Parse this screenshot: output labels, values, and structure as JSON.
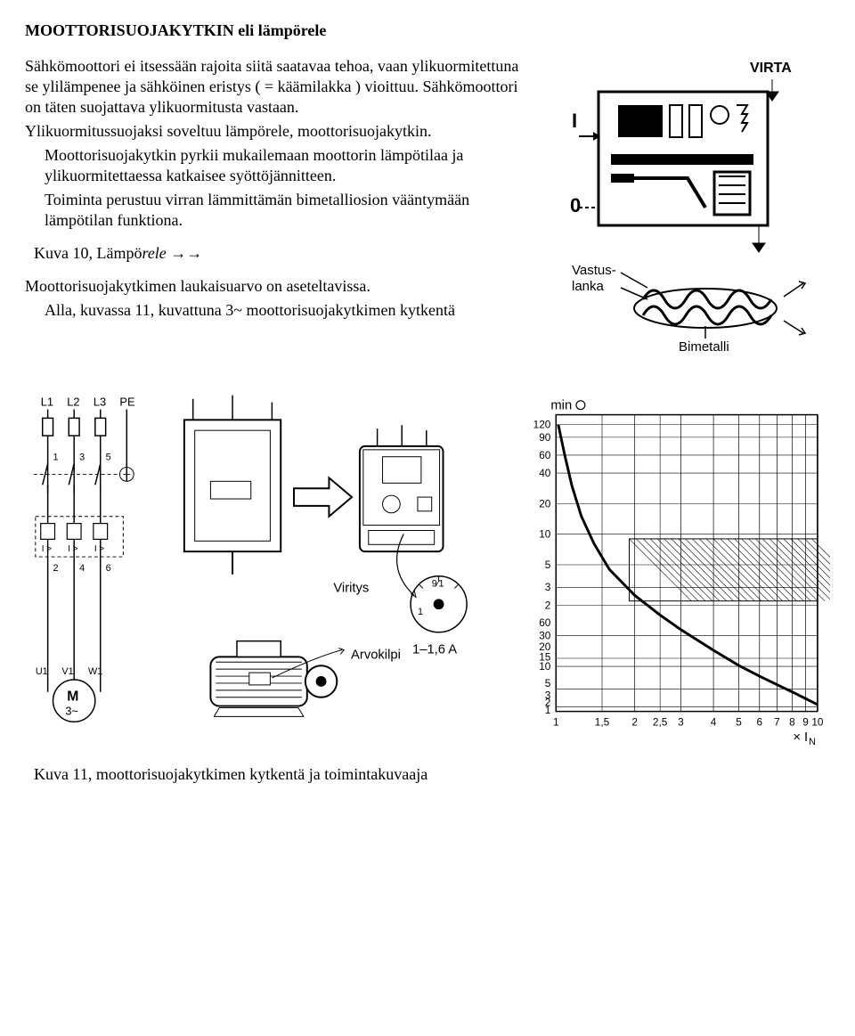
{
  "title": "MOOTTORISUOJAKYTKIN eli lämpörele",
  "intro": "Sähkömoottori ei itsessään rajoita siitä saatavaa tehoa, vaan ylikuormitettuna se ylilämpenee ja sähköinen eristys ( = käämilakka ) vioittuu. Sähkömoottori on täten suojattava ylikuormitusta vastaan.",
  "p1": "Ylikuormitussuojaksi soveltuu lämpörele, moottorisuojakytkin.",
  "p2a": "Moottorisuojakytkin pyrkii mukailemaan moottorin lämpötilaa ja ylikuormitettaessa katkaisee syöttöjännitteen.",
  "p2b": "Toiminta perustuu virran lämmittämän bimetalliosion vääntymään lämpötilan funktiona.",
  "cap10_a": "Kuva 10, Lämpö",
  "cap10_b": "rele →→",
  "p3": "Moottorisuojakytkimen laukaisuarvo on aseteltavissa.",
  "p4": "Alla, kuvassa 11, kuvattuna 3~ moottorisuojakytkimen kytkentä",
  "cap11": "Kuva 11, moottorisuojakytkimen kytkentä ja toimintakuvaaja",
  "fig10": {
    "label_virta": "VIRTA",
    "label_I": "I",
    "label_0": "0",
    "label_vastus1": "Vastus-",
    "label_vastus2": "lanka",
    "label_bimetalli": "Bimetalli"
  },
  "fig11_left": {
    "L1": "L1",
    "L2": "L2",
    "L3": "L3",
    "PE": "PE",
    "t1": "1",
    "t3": "3",
    "t5": "5",
    "b2": "2",
    "b4": "4",
    "b6": "6",
    "igt": "I >",
    "u1": "U1",
    "v1": "V1",
    "w1": "W1",
    "motor": "M",
    "motor_sub": "3~"
  },
  "fig11_mid": {
    "label_viritys": "Viritys",
    "label_range": "1–1,6 A",
    "label_arvokilpi": "Arvokilpi",
    "dial_top": "9⁄1",
    "dial_mid": "1"
  },
  "chart": {
    "title": "minO",
    "y_upper_ticks": [
      "120",
      "90",
      "60",
      "40",
      "20",
      "10",
      "5",
      "3",
      "2",
      "60",
      "30",
      "20",
      "15",
      "10",
      "5",
      "3",
      "2",
      "1"
    ],
    "x_ticks": [
      "1",
      "1,5",
      "2",
      "2,5",
      "3",
      "4",
      "5",
      "6",
      "7",
      "8",
      "9",
      "10"
    ],
    "x_label": "× I",
    "x_label_sub": "N",
    "grid_color": "#000000",
    "bg_color": "#ffffff",
    "font_size": 12,
    "line_width": 2,
    "origin_y_at_break": true,
    "curve_points": [
      {
        "x": 1.02,
        "y": 120
      },
      {
        "x": 1.08,
        "y": 60
      },
      {
        "x": 1.15,
        "y": 30
      },
      {
        "x": 1.25,
        "y": 15
      },
      {
        "x": 1.4,
        "y": 8
      },
      {
        "x": 1.6,
        "y": 4.5
      },
      {
        "x": 2.0,
        "y": 2.5
      },
      {
        "x": 2.5,
        "y": 1.6
      },
      {
        "x": 3.0,
        "y": 1.15
      },
      {
        "x": 4.0,
        "y": 0.72
      },
      {
        "x": 5.0,
        "y": 0.51
      },
      {
        "x": 6.0,
        "y": 0.4
      },
      {
        "x": 8.0,
        "y": 0.28
      },
      {
        "x": 10.0,
        "y": 0.21
      }
    ]
  },
  "colors": {
    "text": "#000000",
    "bg": "#ffffff"
  }
}
